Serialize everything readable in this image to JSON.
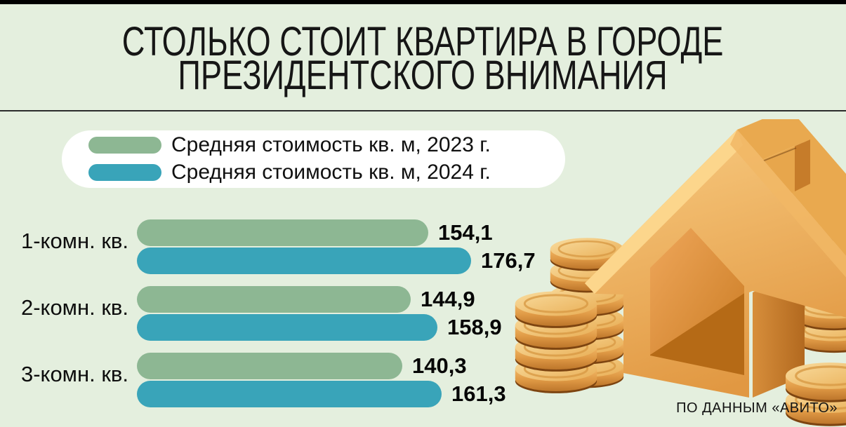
{
  "page": {
    "background": "#e4efde",
    "top_bar_color": "#000000",
    "separator_color": "#2b2b2b"
  },
  "title": {
    "line1": "СТОЛЬКО СТОИТ КВАРТИРА В ГОРОДЕ",
    "line2": "ПРЕЗИДЕНТСКОГО ВНИМАНИЯ"
  },
  "legend": {
    "items": [
      {
        "label": "Средняя стоимость кв. м, 2023 г.",
        "color": "#8db793"
      },
      {
        "label": "Средняя стоимость кв. м, 2024 г.",
        "color": "#39a4b9"
      }
    ]
  },
  "chart_data": {
    "type": "bar",
    "orientation": "horizontal",
    "categories": [
      "1-комн. кв.",
      "2-комн. кв.",
      "3-комн. кв."
    ],
    "series": [
      {
        "name": "Средняя стоимость кв. м, 2023 г.",
        "color": "#8db793",
        "values": [
          154.1,
          144.9,
          140.3
        ],
        "value_labels": [
          "154,1",
          "144,9",
          "140,3"
        ]
      },
      {
        "name": "Средняя стоимость кв. м, 2024 г.",
        "color": "#39a4b9",
        "values": [
          176.7,
          158.9,
          161.3
        ],
        "value_labels": [
          "176,7",
          "158,9",
          "161,3"
        ]
      }
    ],
    "xlim": [
      0,
      185
    ],
    "grid": "off",
    "legend_position": "top-left"
  },
  "source": {
    "label": "ПО ДАННЫМ «АВИТО»"
  },
  "illustration": {
    "description": "golden 3D house piggy bank with stacks of gold coins"
  }
}
